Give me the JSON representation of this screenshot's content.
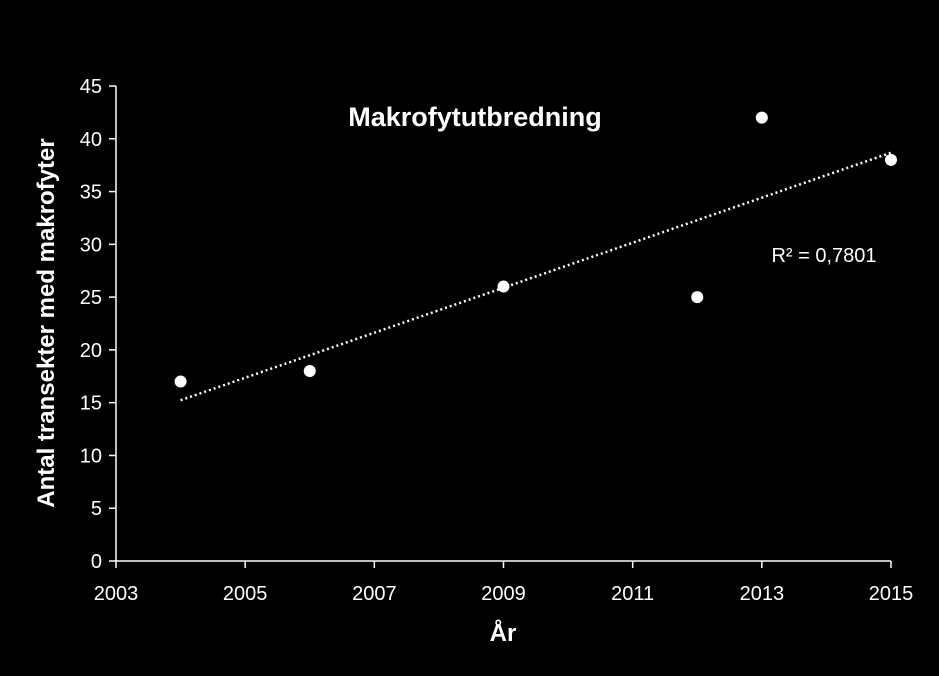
{
  "chart_data": {
    "type": "scatter",
    "title": "Makrofytutbredning",
    "xlabel": "År",
    "ylabel": "Antal transekter med makrofyter",
    "xlim": [
      2003,
      2015
    ],
    "ylim": [
      0,
      45
    ],
    "x_ticks": [
      2003,
      2005,
      2007,
      2009,
      2011,
      2013,
      2015
    ],
    "y_ticks": [
      0,
      5,
      10,
      15,
      20,
      25,
      30,
      35,
      40,
      45
    ],
    "points": [
      {
        "x": 2004,
        "y": 17
      },
      {
        "x": 2006,
        "y": 18
      },
      {
        "x": 2009,
        "y": 26
      },
      {
        "x": 2012,
        "y": 25
      },
      {
        "x": 2013,
        "y": 42
      },
      {
        "x": 2015,
        "y": 38
      }
    ],
    "trendline": {
      "type": "linear",
      "style": "dotted",
      "r2_label": "R² = 0,7801"
    },
    "grid": false,
    "colors": {
      "background": "#000000",
      "points": "#ffffff",
      "axes": "#ffffff",
      "text": "#ffffff"
    }
  }
}
